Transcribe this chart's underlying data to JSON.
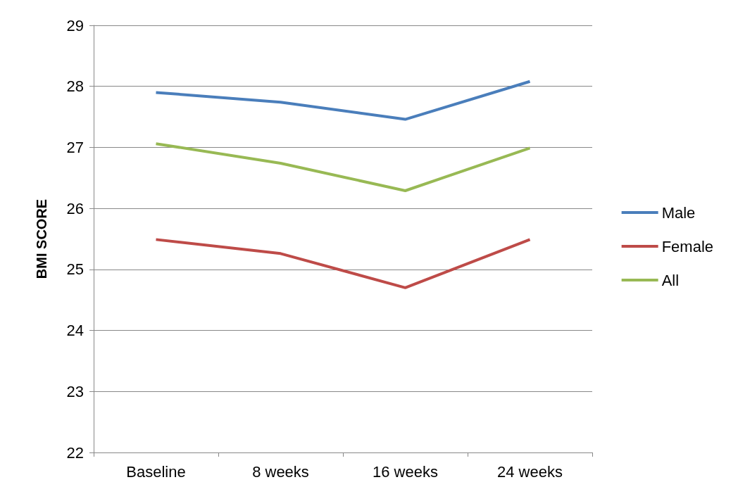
{
  "chart_data": {
    "type": "line",
    "ylabel": "BMI SCORE",
    "categories": [
      "Baseline",
      "8 weeks",
      "16 weeks",
      "24 weeks"
    ],
    "series": [
      {
        "name": "Male",
        "color": "#4a7ebb",
        "values": [
          27.9,
          27.74,
          27.46,
          28.08
        ]
      },
      {
        "name": "Female",
        "color": "#be4b48",
        "values": [
          25.49,
          25.26,
          24.7,
          25.49
        ]
      },
      {
        "name": "All",
        "color": "#98b954",
        "values": [
          27.06,
          26.74,
          26.29,
          26.99
        ]
      }
    ],
    "ylim": [
      22,
      29
    ],
    "yticks": [
      22,
      23,
      24,
      25,
      26,
      27,
      28,
      29
    ],
    "grid": "y",
    "legend": "right",
    "marker": "none"
  }
}
